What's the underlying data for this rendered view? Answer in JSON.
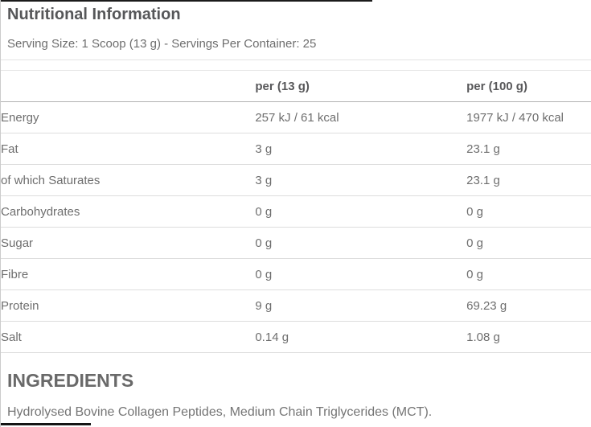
{
  "header": {
    "title": "Nutritional Information",
    "serving_info": "Serving Size: 1 Scoop (13 g) - Servings Per Container: 25"
  },
  "table": {
    "headers": {
      "per_serving": "per (13 g)",
      "per_100g": "per (100 g)"
    },
    "rows": [
      {
        "label": "Energy",
        "per_serving": "257 kJ / 61 kcal",
        "per_100g": "1977 kJ / 470 kcal"
      },
      {
        "label": "Fat",
        "per_serving": "3 g",
        "per_100g": "23.1 g"
      },
      {
        "label": "of which Saturates",
        "per_serving": "3 g",
        "per_100g": "23.1 g"
      },
      {
        "label": "Carbohydrates",
        "per_serving": "0 g",
        "per_100g": "0 g"
      },
      {
        "label": "Sugar",
        "per_serving": "0 g",
        "per_100g": "0 g"
      },
      {
        "label": "Fibre",
        "per_serving": "0 g",
        "per_100g": "0 g"
      },
      {
        "label": "Protein",
        "per_serving": "9 g",
        "per_100g": "69.23 g"
      },
      {
        "label": "Salt",
        "per_serving": "0.14 g",
        "per_100g": "1.08 g"
      }
    ]
  },
  "ingredients": {
    "heading": "INGREDIENTS",
    "text": "Hydrolysed Bovine Collagen Peptides, Medium Chain Triglycerides (MCT)."
  },
  "colors": {
    "title_text": "#565759",
    "body_text": "#6e6e6e",
    "row_divider": "#dddddd",
    "header_divider": "#b3b3b3",
    "accent_bar": "#1b1b1b"
  }
}
